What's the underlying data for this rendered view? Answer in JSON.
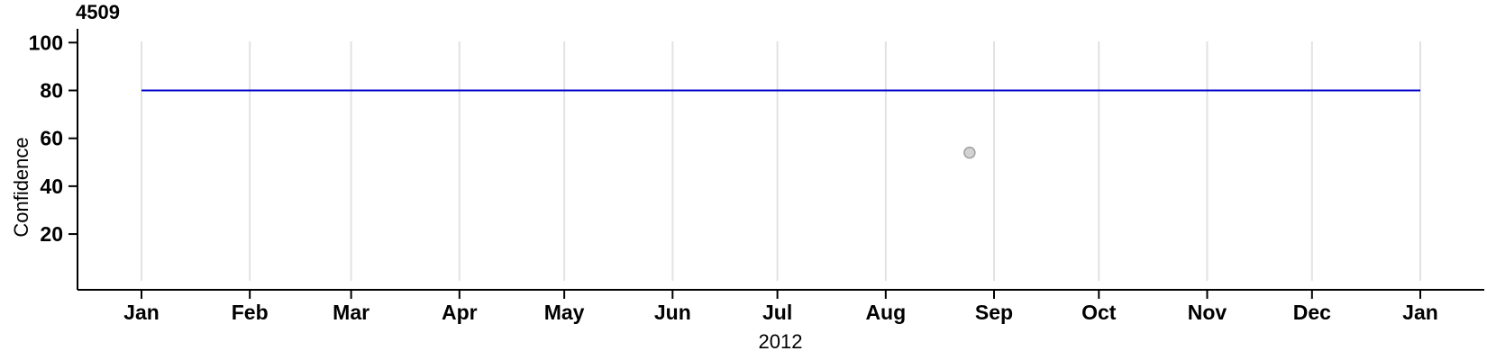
{
  "chart_data": {
    "type": "line",
    "title": "4509",
    "xlabel": "2012",
    "ylabel": "Confidence",
    "x_axis": {
      "range": [
        "2012-01-01",
        "2013-01-01"
      ],
      "grid": true,
      "ticks": [
        {
          "date": "2012-01-01",
          "label": "Jan"
        },
        {
          "date": "2012-02-01",
          "label": "Feb"
        },
        {
          "date": "2012-03-01",
          "label": "Mar"
        },
        {
          "date": "2012-04-01",
          "label": "Apr"
        },
        {
          "date": "2012-05-01",
          "label": "May"
        },
        {
          "date": "2012-06-01",
          "label": "Jun"
        },
        {
          "date": "2012-07-01",
          "label": "Jul"
        },
        {
          "date": "2012-08-01",
          "label": "Aug"
        },
        {
          "date": "2012-09-01",
          "label": "Sep"
        },
        {
          "date": "2012-10-01",
          "label": "Oct"
        },
        {
          "date": "2012-11-01",
          "label": "Nov"
        },
        {
          "date": "2012-12-01",
          "label": "Dec"
        },
        {
          "date": "2013-01-01",
          "label": "Jan"
        }
      ]
    },
    "y_axis": {
      "range": [
        0,
        100.5
      ],
      "ticks": [
        20,
        40,
        60,
        80,
        100
      ],
      "grid": false
    },
    "series": [
      {
        "name": "confidence-line",
        "type": "line",
        "color": "#0000CC",
        "points": [
          {
            "date": "2012-01-01",
            "value": 80
          },
          {
            "date": "2013-01-01",
            "value": 80
          }
        ]
      },
      {
        "name": "confidence-point",
        "type": "scatter",
        "fill": "#D2D2D2",
        "stroke": "#A0A0A0",
        "points": [
          {
            "date": "2012-08-25",
            "value": 54
          }
        ]
      }
    ],
    "colors": {
      "axis": "#000000",
      "grid": "#E2E2E2",
      "text": "#000000"
    },
    "legend": "none"
  }
}
